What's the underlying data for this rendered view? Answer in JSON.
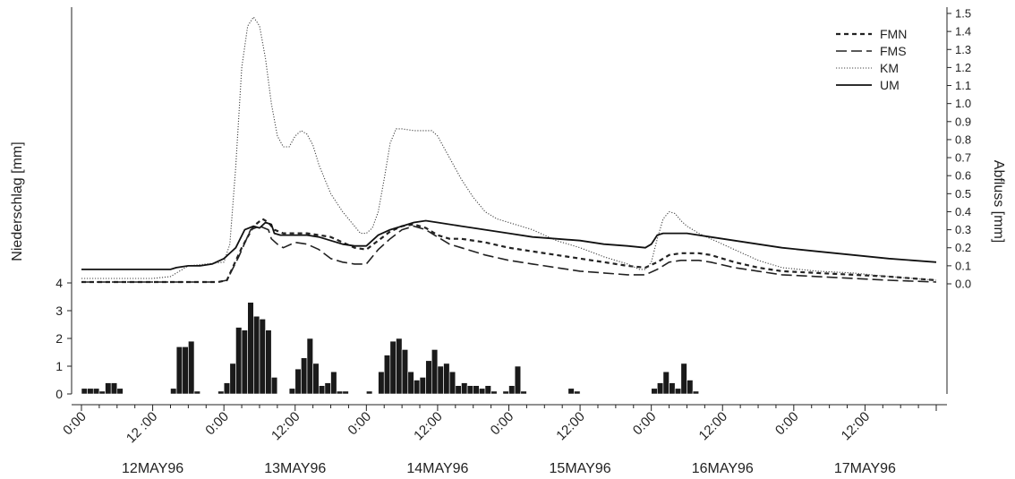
{
  "chart_data": {
    "type": "line",
    "x_axis": {
      "unit": "hours since 12MAY96 0:00",
      "range": [
        0,
        144
      ],
      "tick_labels": [
        "0:00",
        "12 :00",
        "0:00",
        "12:00",
        "0:00",
        "12:00",
        "0:00",
        "12:00",
        "0:00",
        "12:00",
        "0:00",
        "12:00"
      ],
      "tick_hours": [
        0,
        12,
        24,
        36,
        48,
        60,
        72,
        84,
        96,
        108,
        120,
        132
      ],
      "date_labels": [
        "12MAY96",
        "13MAY96",
        "14MAY96",
        "15MAY96",
        "16MAY96",
        "17MAY96"
      ]
    },
    "discharge": {
      "ylabel": "Abfluss [mm]",
      "ylim": [
        0,
        1.5
      ],
      "ticks": [
        "0.0",
        "0.1",
        "0.2",
        "0.3",
        "0.4",
        "0.5",
        "0.6",
        "0.7",
        "0.8",
        "0.9",
        "1.0",
        "1.1",
        "1.2",
        "1.3",
        "1.4",
        "1.5"
      ],
      "legend_position": "top-right",
      "series": [
        {
          "name": "FMN",
          "style": "short-dash",
          "points": [
            [
              0,
              0.01
            ],
            [
              23,
              0.01
            ],
            [
              24.5,
              0.02
            ],
            [
              27,
              0.2
            ],
            [
              29,
              0.32
            ],
            [
              30.5,
              0.36
            ],
            [
              31.5,
              0.34
            ],
            [
              32.5,
              0.3
            ],
            [
              34,
              0.28
            ],
            [
              36,
              0.28
            ],
            [
              38,
              0.28
            ],
            [
              40,
              0.27
            ],
            [
              42,
              0.26
            ],
            [
              44,
              0.23
            ],
            [
              46,
              0.2
            ],
            [
              48,
              0.19
            ],
            [
              50,
              0.24
            ],
            [
              52,
              0.29
            ],
            [
              54,
              0.32
            ],
            [
              56,
              0.33
            ],
            [
              58,
              0.31
            ],
            [
              60,
              0.27
            ],
            [
              62,
              0.25
            ],
            [
              64,
              0.25
            ],
            [
              68,
              0.23
            ],
            [
              72,
              0.2
            ],
            [
              76,
              0.18
            ],
            [
              80,
              0.16
            ],
            [
              84,
              0.14
            ],
            [
              88,
              0.12
            ],
            [
              92,
              0.1
            ],
            [
              95,
              0.09
            ],
            [
              97,
              0.12
            ],
            [
              99,
              0.16
            ],
            [
              101,
              0.17
            ],
            [
              104,
              0.17
            ],
            [
              106,
              0.16
            ],
            [
              110,
              0.12
            ],
            [
              114,
              0.09
            ],
            [
              118,
              0.07
            ],
            [
              124,
              0.06
            ],
            [
              130,
              0.05
            ],
            [
              136,
              0.04
            ],
            [
              144,
              0.02
            ]
          ]
        },
        {
          "name": "FMS",
          "style": "long-dash",
          "points": [
            [
              0,
              0.01
            ],
            [
              23,
              0.01
            ],
            [
              24.5,
              0.02
            ],
            [
              26.5,
              0.15
            ],
            [
              28.5,
              0.3
            ],
            [
              30,
              0.32
            ],
            [
              31.5,
              0.3
            ],
            [
              32,
              0.25
            ],
            [
              33,
              0.22
            ],
            [
              34,
              0.2
            ],
            [
              36,
              0.23
            ],
            [
              38,
              0.22
            ],
            [
              40,
              0.19
            ],
            [
              42,
              0.14
            ],
            [
              44,
              0.12
            ],
            [
              46,
              0.11
            ],
            [
              48,
              0.11
            ],
            [
              50,
              0.19
            ],
            [
              52,
              0.25
            ],
            [
              54,
              0.3
            ],
            [
              56,
              0.32
            ],
            [
              58,
              0.3
            ],
            [
              60,
              0.26
            ],
            [
              62,
              0.22
            ],
            [
              64,
              0.2
            ],
            [
              68,
              0.16
            ],
            [
              72,
              0.13
            ],
            [
              76,
              0.11
            ],
            [
              80,
              0.09
            ],
            [
              84,
              0.07
            ],
            [
              88,
              0.06
            ],
            [
              92,
              0.05
            ],
            [
              95,
              0.05
            ],
            [
              97,
              0.08
            ],
            [
              99,
              0.12
            ],
            [
              101,
              0.13
            ],
            [
              104,
              0.13
            ],
            [
              106,
              0.12
            ],
            [
              110,
              0.09
            ],
            [
              114,
              0.07
            ],
            [
              118,
              0.05
            ],
            [
              124,
              0.04
            ],
            [
              130,
              0.03
            ],
            [
              136,
              0.02
            ],
            [
              144,
              0.01
            ]
          ]
        },
        {
          "name": "KM",
          "style": "dotted",
          "points": [
            [
              0,
              0.03
            ],
            [
              12,
              0.03
            ],
            [
              15,
              0.04
            ],
            [
              18,
              0.1
            ],
            [
              21,
              0.11
            ],
            [
              24,
              0.12
            ],
            [
              25,
              0.22
            ],
            [
              26,
              0.65
            ],
            [
              27,
              1.2
            ],
            [
              28,
              1.43
            ],
            [
              29,
              1.48
            ],
            [
              30,
              1.43
            ],
            [
              31,
              1.25
            ],
            [
              32,
              1.0
            ],
            [
              33,
              0.82
            ],
            [
              34,
              0.76
            ],
            [
              35,
              0.76
            ],
            [
              36,
              0.82
            ],
            [
              37,
              0.85
            ],
            [
              38,
              0.83
            ],
            [
              39,
              0.77
            ],
            [
              40,
              0.66
            ],
            [
              42,
              0.5
            ],
            [
              44,
              0.4
            ],
            [
              46,
              0.32
            ],
            [
              47,
              0.28
            ],
            [
              48,
              0.28
            ],
            [
              49,
              0.31
            ],
            [
              50,
              0.4
            ],
            [
              51,
              0.58
            ],
            [
              52,
              0.78
            ],
            [
              53,
              0.86
            ],
            [
              54,
              0.86
            ],
            [
              56,
              0.85
            ],
            [
              58,
              0.85
            ],
            [
              59,
              0.85
            ],
            [
              60,
              0.82
            ],
            [
              61,
              0.76
            ],
            [
              62,
              0.7
            ],
            [
              64,
              0.58
            ],
            [
              66,
              0.48
            ],
            [
              68,
              0.4
            ],
            [
              70,
              0.36
            ],
            [
              72,
              0.34
            ],
            [
              76,
              0.3
            ],
            [
              80,
              0.24
            ],
            [
              84,
              0.2
            ],
            [
              88,
              0.15
            ],
            [
              92,
              0.11
            ],
            [
              94,
              0.08
            ],
            [
              95,
              0.08
            ],
            [
              96,
              0.12
            ],
            [
              97,
              0.25
            ],
            [
              98,
              0.36
            ],
            [
              99,
              0.4
            ],
            [
              100,
              0.39
            ],
            [
              101,
              0.35
            ],
            [
              102,
              0.32
            ],
            [
              104,
              0.28
            ],
            [
              106,
              0.25
            ],
            [
              110,
              0.19
            ],
            [
              114,
              0.13
            ],
            [
              118,
              0.09
            ],
            [
              124,
              0.07
            ],
            [
              130,
              0.06
            ],
            [
              136,
              0.04
            ],
            [
              144,
              0.02
            ]
          ]
        },
        {
          "name": "UM",
          "style": "solid",
          "points": [
            [
              0,
              0.08
            ],
            [
              15,
              0.08
            ],
            [
              16,
              0.09
            ],
            [
              18,
              0.1
            ],
            [
              20,
              0.1
            ],
            [
              22,
              0.11
            ],
            [
              24,
              0.14
            ],
            [
              26,
              0.2
            ],
            [
              27.5,
              0.3
            ],
            [
              29,
              0.32
            ],
            [
              30,
              0.31
            ],
            [
              31,
              0.34
            ],
            [
              32,
              0.33
            ],
            [
              32.5,
              0.28
            ],
            [
              33.5,
              0.27
            ],
            [
              36,
              0.27
            ],
            [
              38,
              0.27
            ],
            [
              40,
              0.26
            ],
            [
              42,
              0.24
            ],
            [
              44,
              0.22
            ],
            [
              46,
              0.21
            ],
            [
              48,
              0.21
            ],
            [
              50,
              0.27
            ],
            [
              52,
              0.3
            ],
            [
              54,
              0.32
            ],
            [
              56,
              0.34
            ],
            [
              58,
              0.35
            ],
            [
              60,
              0.34
            ],
            [
              64,
              0.32
            ],
            [
              68,
              0.3
            ],
            [
              72,
              0.28
            ],
            [
              76,
              0.26
            ],
            [
              80,
              0.25
            ],
            [
              84,
              0.24
            ],
            [
              88,
              0.22
            ],
            [
              92,
              0.21
            ],
            [
              95,
              0.2
            ],
            [
              96,
              0.22
            ],
            [
              97,
              0.27
            ],
            [
              98,
              0.28
            ],
            [
              102,
              0.28
            ],
            [
              106,
              0.26
            ],
            [
              110,
              0.24
            ],
            [
              114,
              0.22
            ],
            [
              118,
              0.2
            ],
            [
              124,
              0.18
            ],
            [
              130,
              0.16
            ],
            [
              136,
              0.14
            ],
            [
              144,
              0.12
            ]
          ]
        }
      ]
    },
    "precipitation": {
      "ylabel": "Niederschlag [mm]",
      "ylim": [
        0,
        4
      ],
      "ticks": [
        "0",
        "1",
        "2",
        "3",
        "4"
      ],
      "bar_width_hours": 1,
      "bars": [
        [
          0,
          0.2
        ],
        [
          1,
          0.2
        ],
        [
          2,
          0.2
        ],
        [
          3,
          0.1
        ],
        [
          4,
          0.4
        ],
        [
          5,
          0.4
        ],
        [
          6,
          0.2
        ],
        [
          15,
          0.2
        ],
        [
          16,
          1.7
        ],
        [
          17,
          1.7
        ],
        [
          18,
          1.9
        ],
        [
          19,
          0.1
        ],
        [
          23,
          0.1
        ],
        [
          24,
          0.4
        ],
        [
          25,
          1.1
        ],
        [
          26,
          2.4
        ],
        [
          27,
          2.3
        ],
        [
          28,
          3.3
        ],
        [
          29,
          2.8
        ],
        [
          30,
          2.7
        ],
        [
          31,
          2.3
        ],
        [
          32,
          0.6
        ],
        [
          35,
          0.2
        ],
        [
          36,
          0.9
        ],
        [
          37,
          1.3
        ],
        [
          38,
          2.0
        ],
        [
          39,
          1.1
        ],
        [
          40,
          0.3
        ],
        [
          41,
          0.4
        ],
        [
          42,
          0.8
        ],
        [
          43,
          0.1
        ],
        [
          44,
          0.1
        ],
        [
          48,
          0.1
        ],
        [
          50,
          0.8
        ],
        [
          51,
          1.4
        ],
        [
          52,
          1.9
        ],
        [
          53,
          2.0
        ],
        [
          54,
          1.6
        ],
        [
          55,
          0.8
        ],
        [
          56,
          0.5
        ],
        [
          57,
          0.6
        ],
        [
          58,
          1.2
        ],
        [
          59,
          1.6
        ],
        [
          60,
          1.0
        ],
        [
          61,
          1.1
        ],
        [
          62,
          0.8
        ],
        [
          63,
          0.3
        ],
        [
          64,
          0.4
        ],
        [
          65,
          0.3
        ],
        [
          66,
          0.3
        ],
        [
          67,
          0.2
        ],
        [
          68,
          0.3
        ],
        [
          69,
          0.1
        ],
        [
          71,
          0.1
        ],
        [
          72,
          0.3
        ],
        [
          73,
          1.0
        ],
        [
          74,
          0.1
        ],
        [
          82,
          0.2
        ],
        [
          83,
          0.1
        ],
        [
          96,
          0.2
        ],
        [
          97,
          0.4
        ],
        [
          98,
          0.8
        ],
        [
          99,
          0.4
        ],
        [
          100,
          0.2
        ],
        [
          101,
          1.1
        ],
        [
          102,
          0.5
        ],
        [
          103,
          0.1
        ]
      ]
    }
  }
}
